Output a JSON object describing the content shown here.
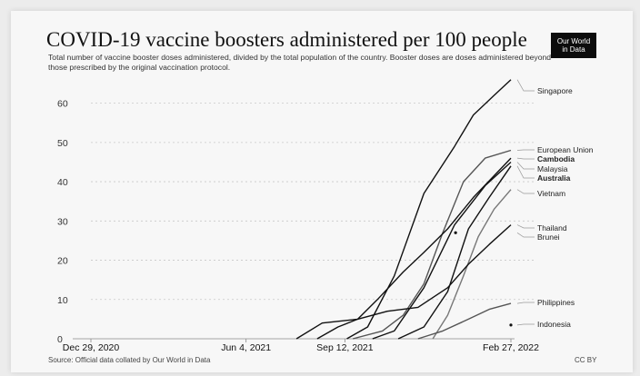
{
  "title": "COVID-19 vaccine boosters administered per 100 people",
  "subtitle": "Total number of vaccine booster doses administered, divided by the total population of the country. Booster doses are doses administered beyond those prescribed by the original vaccination protocol.",
  "logo": {
    "line1": "Our World",
    "line2": "in Data"
  },
  "source": "Source: Official data collated by Our World in Data",
  "license": "CC BY",
  "colors": {
    "background": "#f7f7f7",
    "line": "#111111",
    "grid": "#c8c8c8"
  },
  "chart_data": {
    "type": "line",
    "title": "COVID-19 vaccine boosters administered per 100 people",
    "xlabel": "",
    "ylabel": "",
    "x_range": [
      "2020-12-29",
      "2022-02-27"
    ],
    "ylim": [
      0,
      65
    ],
    "y_ticks": [
      0,
      10,
      20,
      30,
      40,
      50,
      60
    ],
    "x_ticks": [
      {
        "date": "2020-12-29",
        "label": "Dec 29, 2020"
      },
      {
        "date": "2021-06-04",
        "label": "Jun 4, 2021"
      },
      {
        "date": "2021-09-12",
        "label": "Sep 12, 2021"
      },
      {
        "date": "2022-02-27",
        "label": "Feb 27, 2022"
      }
    ],
    "grid": true,
    "legend": "labels at right end of lines",
    "series": [
      {
        "name": "Singapore",
        "color": "#111111",
        "points": [
          [
            "2021-09-14",
            0
          ],
          [
            "2021-10-05",
            3
          ],
          [
            "2021-11-01",
            16
          ],
          [
            "2021-12-01",
            37
          ],
          [
            "2022-01-01",
            49
          ],
          [
            "2022-01-20",
            57
          ],
          [
            "2022-02-10",
            62
          ],
          [
            "2022-02-27",
            66
          ]
        ]
      },
      {
        "name": "European Union",
        "color": "#555555",
        "points": [
          [
            "2021-09-20",
            0
          ],
          [
            "2021-10-20",
            2
          ],
          [
            "2021-11-10",
            6
          ],
          [
            "2021-12-01",
            14
          ],
          [
            "2021-12-20",
            27
          ],
          [
            "2022-01-10",
            40
          ],
          [
            "2022-02-01",
            46
          ],
          [
            "2022-02-27",
            48
          ]
        ]
      },
      {
        "name": "Cambodia",
        "color": "#111111",
        "points": [
          [
            "2021-08-15",
            0
          ],
          [
            "2021-09-05",
            3
          ],
          [
            "2021-09-25",
            5
          ],
          [
            "2021-10-15",
            10
          ],
          [
            "2021-11-10",
            17
          ],
          [
            "2021-12-01",
            22
          ],
          [
            "2021-12-25",
            28
          ],
          [
            "2022-01-20",
            36
          ],
          [
            "2022-02-27",
            46
          ]
        ]
      },
      {
        "name": "Malaysia",
        "color": "#111111",
        "points": [
          [
            "2021-10-10",
            0
          ],
          [
            "2021-11-01",
            2
          ],
          [
            "2021-12-01",
            13
          ],
          [
            "2022-01-01",
            29
          ],
          [
            "2022-02-01",
            39
          ],
          [
            "2022-02-27",
            45
          ]
        ]
      },
      {
        "name": "Australia",
        "color": "#111111",
        "points": [
          [
            "2021-11-05",
            0
          ],
          [
            "2021-12-01",
            3
          ],
          [
            "2021-12-25",
            12
          ],
          [
            "2022-01-15",
            28
          ],
          [
            "2022-02-05",
            36
          ],
          [
            "2022-02-27",
            44
          ]
        ]
      },
      {
        "name": "Vietnam",
        "color": "#777777",
        "points": [
          [
            "2021-12-10",
            0
          ],
          [
            "2021-12-25",
            6
          ],
          [
            "2022-01-10",
            16
          ],
          [
            "2022-01-25",
            26
          ],
          [
            "2022-02-10",
            33
          ],
          [
            "2022-02-27",
            38
          ]
        ]
      },
      {
        "name": "Thailand",
        "color": "#111111",
        "points": [
          [
            "2021-07-25",
            0
          ],
          [
            "2021-08-20",
            4
          ],
          [
            "2021-09-25",
            5
          ],
          [
            "2021-10-25",
            7
          ],
          [
            "2021-11-25",
            8
          ],
          [
            "2021-12-25",
            13
          ],
          [
            "2022-01-15",
            19
          ],
          [
            "2022-02-05",
            24
          ],
          [
            "2022-02-27",
            29
          ]
        ]
      },
      {
        "name": "Brunei",
        "color": "#111111",
        "points": [
          [
            "2022-01-02",
            27
          ]
        ]
      },
      {
        "name": "Philippines",
        "color": "#555555",
        "points": [
          [
            "2021-11-25",
            0
          ],
          [
            "2021-12-20",
            2
          ],
          [
            "2022-01-15",
            5
          ],
          [
            "2022-02-05",
            7.5
          ],
          [
            "2022-02-27",
            9
          ]
        ]
      },
      {
        "name": "Indonesia",
        "color": "#111111",
        "points": [
          [
            "2022-02-27",
            3.5
          ]
        ]
      }
    ]
  }
}
